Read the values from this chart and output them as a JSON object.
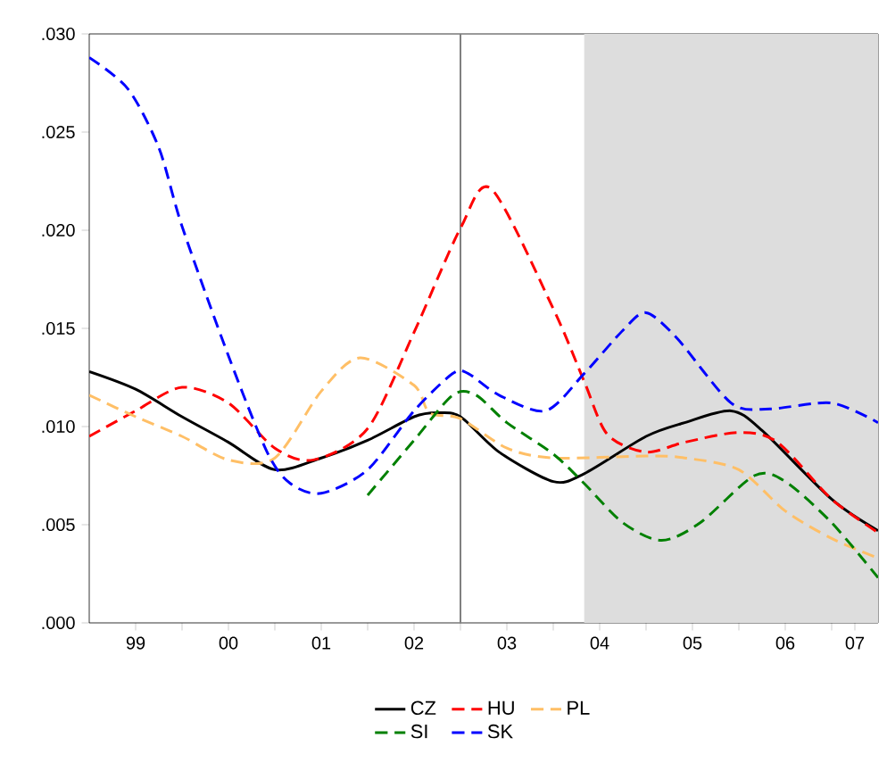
{
  "chart_data": {
    "type": "line",
    "xlim": [
      "1999-01",
      "2007-07"
    ],
    "ylim": [
      0,
      0.03
    ],
    "xticks": [
      {
        "value": "1999-07",
        "label": "99"
      },
      {
        "value": "2000-01",
        "label": null
      },
      {
        "value": "2000-07",
        "label": "00"
      },
      {
        "value": "2001-01",
        "label": null
      },
      {
        "value": "2001-07",
        "label": "01"
      },
      {
        "value": "2002-01",
        "label": null
      },
      {
        "value": "2002-07",
        "label": "02"
      },
      {
        "value": "2003-01",
        "label": null
      },
      {
        "value": "2003-07",
        "label": "03"
      },
      {
        "value": "2004-01",
        "label": null
      },
      {
        "value": "2004-07",
        "label": "04"
      },
      {
        "value": "2005-01",
        "label": null
      },
      {
        "value": "2005-07",
        "label": "05"
      },
      {
        "value": "2006-01",
        "label": null
      },
      {
        "value": "2006-07",
        "label": "06"
      },
      {
        "value": "2007-01",
        "label": null
      },
      {
        "value": "2007-04",
        "label": "07"
      }
    ],
    "yticks": [
      {
        "value": 0,
        "label": ".000"
      },
      {
        "value": 0.005,
        "label": ".005"
      },
      {
        "value": 0.01,
        "label": ".010"
      },
      {
        "value": 0.015,
        "label": ".015"
      },
      {
        "value": 0.02,
        "label": ".020"
      },
      {
        "value": 0.025,
        "label": ".025"
      },
      {
        "value": 0.03,
        "label": ".030"
      }
    ],
    "grid": false,
    "legend": "bottom",
    "ref_lines": [
      {
        "axis": "x",
        "value": "2003-01",
        "color": "#808080"
      }
    ],
    "bands": [
      {
        "axis": "x",
        "from": "2004-05",
        "to": "2007-07",
        "color": "#dddddd"
      }
    ],
    "series": [
      {
        "name": "CZ",
        "color": "#000000",
        "line_style": "solid",
        "x": [
          "1999-01",
          "1999-07",
          "2000-01",
          "2000-07",
          "2001-01",
          "2001-07",
          "2002-01",
          "2002-07",
          "2002-10",
          "2003-01",
          "2003-06",
          "2004-01",
          "2004-05",
          "2005-01",
          "2005-06",
          "2005-12",
          "2006-04",
          "2007-01",
          "2007-07"
        ],
        "values": [
          0.0128,
          0.0119,
          0.0105,
          0.0092,
          0.0078,
          0.0084,
          0.0093,
          0.0105,
          0.0107,
          0.0105,
          0.0087,
          0.0072,
          0.0076,
          0.0095,
          0.0102,
          0.0108,
          0.0098,
          0.0063,
          0.0047
        ]
      },
      {
        "name": "HU",
        "color": "#ff0000",
        "line_style": "dashed",
        "x": [
          "1999-01",
          "1999-07",
          "2000-01",
          "2000-07",
          "2001-01",
          "2001-06",
          "2002-01",
          "2002-07",
          "2003-01",
          "2003-05",
          "2004-01",
          "2004-05",
          "2004-08",
          "2005-01",
          "2005-06",
          "2006-01",
          "2006-06",
          "2007-01",
          "2007-07"
        ],
        "values": [
          0.0095,
          0.0108,
          0.012,
          0.0112,
          0.0089,
          0.0083,
          0.0099,
          0.0148,
          0.0201,
          0.0221,
          0.016,
          0.0123,
          0.0096,
          0.0087,
          0.0092,
          0.0097,
          0.0092,
          0.0063,
          0.0046
        ]
      },
      {
        "name": "PL",
        "color": "#ffbf66",
        "line_style": "dashed",
        "x": [
          "1999-01",
          "1999-07",
          "2000-01",
          "2000-07",
          "2001-01",
          "2001-07",
          "2001-12",
          "2002-07",
          "2002-09",
          "2003-01",
          "2003-07",
          "2004-01",
          "2005-01",
          "2005-06",
          "2006-01",
          "2006-07",
          "2007-01",
          "2007-07"
        ],
        "values": [
          0.0116,
          0.0105,
          0.0095,
          0.0083,
          0.0084,
          0.0118,
          0.0135,
          0.0121,
          0.0107,
          0.0104,
          0.0089,
          0.0084,
          0.0085,
          0.0084,
          0.0078,
          0.0057,
          0.0043,
          0.0033
        ]
      },
      {
        "name": "SI",
        "color": "#008000",
        "line_style": "dashed",
        "x": [
          "2002-01",
          "2002-07",
          "2002-12",
          "2003-03",
          "2003-07",
          "2004-01",
          "2004-05",
          "2004-10",
          "2005-03",
          "2005-08",
          "2006-03",
          "2006-07",
          "2007-01",
          "2007-07"
        ],
        "values": [
          0.0065,
          0.0093,
          0.0116,
          0.0116,
          0.0102,
          0.0086,
          0.0071,
          0.0051,
          0.0042,
          0.0051,
          0.0075,
          0.0072,
          0.0051,
          0.0023
        ]
      },
      {
        "name": "SK",
        "color": "#0000ff",
        "line_style": "dashed",
        "x": [
          "1999-01",
          "1999-06",
          "1999-10",
          "2000-01",
          "2000-07",
          "2000-12",
          "2001-03",
          "2001-07",
          "2002-01",
          "2002-07",
          "2002-12",
          "2003-02",
          "2003-06",
          "2003-12",
          "2004-05",
          "2004-10",
          "2005-01",
          "2005-05",
          "2005-12",
          "2006-05",
          "2007-01",
          "2007-07"
        ],
        "values": [
          0.0288,
          0.0272,
          0.0242,
          0.0202,
          0.0136,
          0.0087,
          0.0071,
          0.0066,
          0.0078,
          0.0108,
          0.0127,
          0.0127,
          0.0116,
          0.0108,
          0.0127,
          0.0149,
          0.0158,
          0.0145,
          0.0112,
          0.0109,
          0.0112,
          0.0102
        ]
      }
    ]
  }
}
